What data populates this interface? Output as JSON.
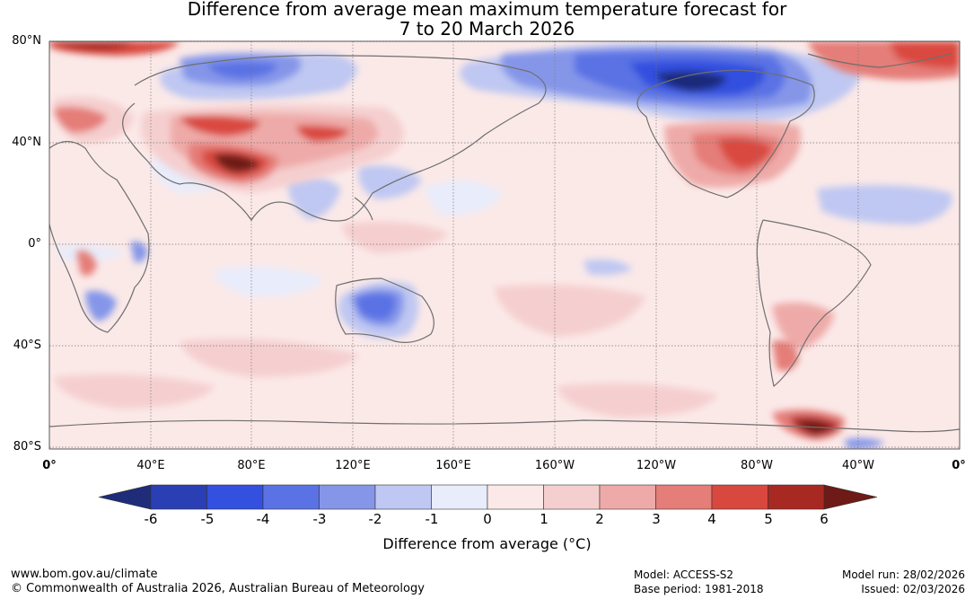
{
  "title": {
    "line1": "Difference from average mean maximum temperature forecast for",
    "line2": "7 to 20 March 2026"
  },
  "axes": {
    "lat_labels": [
      "80°N",
      "40°N",
      "0°",
      "40°S",
      "80°S"
    ],
    "lon_labels": [
      "0°",
      "40°E",
      "80°E",
      "120°E",
      "160°E",
      "160°W",
      "120°W",
      "80°W",
      "40°W",
      "0°"
    ]
  },
  "colorbar": {
    "ticks": [
      "-6",
      "-5",
      "-4",
      "-3",
      "-2",
      "-1",
      "0",
      "1",
      "2",
      "3",
      "4",
      "5",
      "6"
    ],
    "colors": [
      "#1f2c7a",
      "#2b3fb4",
      "#3350df",
      "#5a72e4",
      "#8596e9",
      "#bfc8f2",
      "#e8ecfb",
      "#fbe9e8",
      "#f5cfcf",
      "#eeaaa8",
      "#e57d78",
      "#d9483f",
      "#a82822",
      "#6e1a16"
    ],
    "label": "Difference from average (°C)"
  },
  "footer": {
    "url": "www.bom.gov.au/climate",
    "copyright": "© Commonwealth of Australia 2026, Australian Bureau of Meteorology",
    "model": "Model: ACCESS-S2",
    "base_period": "Base period: 1981-2018",
    "model_run": "Model run: 28/02/2026",
    "issued": "Issued: 02/03/2026"
  }
}
